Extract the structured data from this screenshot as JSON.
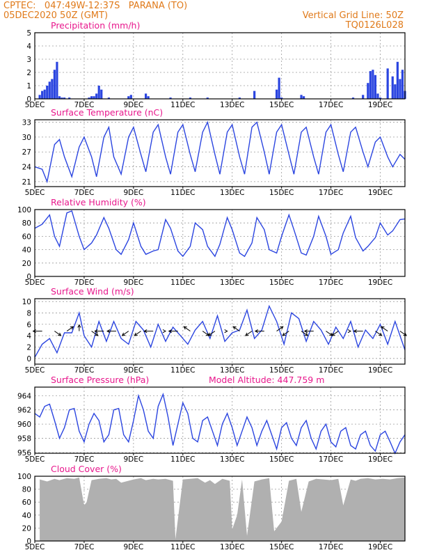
{
  "header": {
    "line1": "CPTEC:   047:49W-12:37S   PARANA (TO)",
    "line2": "05DEC2020 50Z (GMT)",
    "right1": "Vertical Grid Line: 50Z",
    "right2": "TQ0126L028"
  },
  "colors": {
    "title": "#e8178c",
    "header": "#e07a1a",
    "series": "#2b45e0",
    "bars": "#2b45e0",
    "cloud": "#b0b0b0",
    "wind_arrows": "#000000"
  },
  "x_axis": {
    "date_labels": [
      "5DEC",
      "7DEC",
      "9DEC",
      "11DEC",
      "13DEC",
      "15DEC",
      "17DEC",
      "19DEC"
    ],
    "day_range": [
      5,
      20
    ]
  },
  "chart_data": [
    {
      "id": "precip",
      "type": "bar",
      "title": "Precipitation (mm/h)",
      "ylim": [
        0,
        5
      ],
      "yticks": [
        "0",
        "1",
        "2",
        "3",
        "4",
        "5"
      ],
      "grid": true,
      "x": [
        5.2,
        5.3,
        5.4,
        5.5,
        5.6,
        5.7,
        5.8,
        5.9,
        6.0,
        6.1,
        6.2,
        6.4,
        7.2,
        7.3,
        7.4,
        7.5,
        7.6,
        7.7,
        8.0,
        8.8,
        8.9,
        9.5,
        9.6,
        10.5,
        11.3,
        12.0,
        13.3,
        13.9,
        14.8,
        14.9,
        15.0,
        15.8,
        15.9,
        17.9,
        18.3,
        18.5,
        18.6,
        18.7,
        18.8,
        18.9,
        19.0,
        19.3,
        19.5,
        19.6,
        19.7,
        19.8,
        19.9,
        20.0
      ],
      "values": [
        0.3,
        0.6,
        0.7,
        1.0,
        1.3,
        1.5,
        2.2,
        2.8,
        0.2,
        0.1,
        0.1,
        0.1,
        0.1,
        0.2,
        0.2,
        0.4,
        1.0,
        0.7,
        0.1,
        0.2,
        0.3,
        0.4,
        0.2,
        0.1,
        0.1,
        0.1,
        0.1,
        0.6,
        0.7,
        1.6,
        0.1,
        0.3,
        0.2,
        0.1,
        0.3,
        1.2,
        2.1,
        2.2,
        1.8,
        0.4,
        0.1,
        2.3,
        1.7,
        1.1,
        2.8,
        1.5,
        2.2,
        0.6
      ]
    },
    {
      "id": "temp",
      "type": "line",
      "title": "Surface Temperature (nC)",
      "ylim": [
        20,
        33.5
      ],
      "yticks": [
        "21",
        "24",
        "27",
        "30",
        "33"
      ],
      "grid": true,
      "x": [
        5.0,
        5.3,
        5.5,
        5.8,
        6.0,
        6.2,
        6.5,
        6.8,
        7.0,
        7.3,
        7.5,
        7.8,
        8.0,
        8.2,
        8.5,
        8.8,
        9.0,
        9.3,
        9.5,
        9.8,
        10.0,
        10.3,
        10.5,
        10.8,
        11.0,
        11.3,
        11.5,
        11.8,
        12.0,
        12.3,
        12.5,
        12.8,
        13.0,
        13.3,
        13.5,
        13.8,
        14.0,
        14.3,
        14.5,
        14.8,
        15.0,
        15.3,
        15.5,
        15.8,
        16.0,
        16.3,
        16.5,
        16.8,
        17.0,
        17.3,
        17.5,
        17.8,
        18.0,
        18.3,
        18.5,
        18.8,
        19.0,
        19.3,
        19.5,
        19.8,
        20.0
      ],
      "values": [
        24.0,
        23.5,
        21.0,
        28.5,
        29.5,
        26.0,
        22.0,
        28.0,
        30.0,
        26.0,
        22.0,
        30.0,
        32.0,
        26.0,
        22.5,
        30.0,
        32.0,
        26.5,
        23.0,
        31.0,
        32.5,
        26.0,
        22.5,
        31.0,
        32.5,
        26.5,
        23.0,
        31.0,
        33.0,
        26.5,
        22.5,
        31.0,
        32.5,
        26.0,
        22.5,
        32.0,
        33.0,
        27.0,
        22.5,
        31.0,
        32.5,
        26.5,
        22.5,
        31.0,
        32.0,
        26.0,
        22.5,
        31.0,
        32.5,
        26.5,
        23.0,
        31.0,
        32.0,
        27.0,
        24.0,
        29.0,
        30.0,
        26.0,
        24.0,
        26.5,
        25.5
      ]
    },
    {
      "id": "rh",
      "type": "line",
      "title": "Relative Humidity (%)",
      "ylim": [
        0,
        100
      ],
      "yticks": [
        "0",
        "20",
        "40",
        "60",
        "80",
        "100"
      ],
      "grid": true,
      "x": [
        5.0,
        5.3,
        5.6,
        5.8,
        6.0,
        6.3,
        6.5,
        6.8,
        7.0,
        7.3,
        7.5,
        7.8,
        8.0,
        8.3,
        8.5,
        8.8,
        9.0,
        9.3,
        9.5,
        9.8,
        10.0,
        10.3,
        10.5,
        10.8,
        11.0,
        11.3,
        11.5,
        11.8,
        12.0,
        12.3,
        12.5,
        12.8,
        13.0,
        13.3,
        13.5,
        13.8,
        14.0,
        14.3,
        14.5,
        14.8,
        15.0,
        15.3,
        15.5,
        15.8,
        16.0,
        16.3,
        16.5,
        16.8,
        17.0,
        17.3,
        17.5,
        17.8,
        18.0,
        18.3,
        18.5,
        18.8,
        19.0,
        19.3,
        19.5,
        19.8,
        20.0
      ],
      "values": [
        72,
        78,
        92,
        60,
        45,
        95,
        98,
        60,
        40,
        50,
        62,
        88,
        72,
        40,
        33,
        55,
        80,
        45,
        33,
        38,
        40,
        85,
        72,
        38,
        30,
        45,
        80,
        70,
        45,
        30,
        48,
        88,
        70,
        35,
        30,
        50,
        88,
        70,
        40,
        35,
        60,
        92,
        70,
        35,
        32,
        60,
        90,
        60,
        33,
        40,
        65,
        90,
        58,
        38,
        45,
        58,
        80,
        62,
        68,
        85,
        86
      ]
    },
    {
      "id": "wind",
      "type": "line",
      "title": "Surface Wind (m/s)",
      "ylim": [
        -1,
        10.5
      ],
      "yticks": [
        "0",
        "2",
        "4",
        "6",
        "8",
        "10"
      ],
      "grid": true,
      "x": [
        5.0,
        5.3,
        5.6,
        5.9,
        6.2,
        6.5,
        6.8,
        7.0,
        7.3,
        7.6,
        7.9,
        8.2,
        8.5,
        8.8,
        9.1,
        9.4,
        9.7,
        10.0,
        10.3,
        10.6,
        10.9,
        11.2,
        11.5,
        11.8,
        12.1,
        12.4,
        12.7,
        13.0,
        13.3,
        13.6,
        13.9,
        14.2,
        14.5,
        14.8,
        15.1,
        15.4,
        15.7,
        16.0,
        16.3,
        16.6,
        16.9,
        17.2,
        17.5,
        17.8,
        18.1,
        18.4,
        18.7,
        19.0,
        19.3,
        19.6,
        20.0
      ],
      "values": [
        0.2,
        2.5,
        3.5,
        1.0,
        4.5,
        4.5,
        8.0,
        4.0,
        2.0,
        6.5,
        3.0,
        6.5,
        3.5,
        2.5,
        6.5,
        5.0,
        2.0,
        6.0,
        3.0,
        5.5,
        4.0,
        2.5,
        5.0,
        6.5,
        3.5,
        7.5,
        3.0,
        4.5,
        5.0,
        8.5,
        3.5,
        5.0,
        9.2,
        6.5,
        2.5,
        8.0,
        7.0,
        3.0,
        6.5,
        5.0,
        2.5,
        5.5,
        3.5,
        6.5,
        2.0,
        5.0,
        3.5,
        6.0,
        2.5,
        6.5,
        1.5
      ],
      "arrows": {
        "x": [
          5.3,
          5.8,
          6.3,
          6.8,
          7.3,
          7.8,
          8.3,
          8.8,
          9.3,
          9.8,
          10.3,
          10.8,
          11.3,
          11.8,
          12.3,
          12.8,
          13.3,
          13.8,
          14.3,
          14.8,
          15.3,
          15.8,
          16.3,
          16.8,
          17.3,
          17.8,
          18.3,
          18.8,
          19.3,
          19.8
        ],
        "u": [
          -1,
          1,
          1,
          0,
          1,
          -1,
          -1,
          -1,
          -1,
          -1,
          0,
          -1,
          -1,
          1,
          -1,
          0,
          -1,
          -1,
          -1,
          1,
          -1,
          1,
          -1,
          1,
          -1,
          0,
          -1,
          1,
          -1,
          1
        ],
        "v": [
          0,
          -1,
          1,
          1,
          -1,
          0,
          0,
          -1,
          -1,
          0,
          0,
          0,
          1,
          -1,
          -1,
          0,
          1,
          -1,
          0,
          1,
          -1,
          -1,
          0,
          -1,
          -1,
          0,
          0,
          -1,
          1,
          -1
        ]
      }
    },
    {
      "id": "psfc",
      "type": "line",
      "title": "Surface Pressure (hPa)",
      "annotation": "Model Altitude: 447.759  m",
      "ylim": [
        955.9,
        965.2
      ],
      "yticks": [
        "956",
        "958",
        "960",
        "962",
        "964"
      ],
      "grid": true,
      "x": [
        5.0,
        5.2,
        5.4,
        5.6,
        5.8,
        6.0,
        6.2,
        6.4,
        6.6,
        6.8,
        7.0,
        7.2,
        7.4,
        7.6,
        7.8,
        8.0,
        8.2,
        8.4,
        8.6,
        8.8,
        9.0,
        9.2,
        9.4,
        9.6,
        9.8,
        10.0,
        10.2,
        10.4,
        10.6,
        10.8,
        11.0,
        11.2,
        11.4,
        11.6,
        11.8,
        12.0,
        12.2,
        12.4,
        12.6,
        12.8,
        13.0,
        13.2,
        13.4,
        13.6,
        13.8,
        14.0,
        14.2,
        14.4,
        14.6,
        14.8,
        15.0,
        15.2,
        15.4,
        15.6,
        15.8,
        16.0,
        16.2,
        16.4,
        16.6,
        16.8,
        17.0,
        17.2,
        17.4,
        17.6,
        17.8,
        18.0,
        18.2,
        18.4,
        18.6,
        18.8,
        19.0,
        19.2,
        19.4,
        19.6,
        19.8,
        20.0
      ],
      "values": [
        961.5,
        961.0,
        962.5,
        962.8,
        960.5,
        958.0,
        959.5,
        962.0,
        962.2,
        959.0,
        957.5,
        960.0,
        961.5,
        960.5,
        957.5,
        958.5,
        962.0,
        962.2,
        958.5,
        957.5,
        960.5,
        964.0,
        962.0,
        959.0,
        958.0,
        962.5,
        964.2,
        961.0,
        957.0,
        960.0,
        963.0,
        961.5,
        958.0,
        957.5,
        960.5,
        961.0,
        959.0,
        957.0,
        960.0,
        961.5,
        959.5,
        957.0,
        959.0,
        961.0,
        959.5,
        957.0,
        959.0,
        960.5,
        958.5,
        956.5,
        959.5,
        960.2,
        958.0,
        957.0,
        959.5,
        960.5,
        958.0,
        956.5,
        959.0,
        960.0,
        957.5,
        956.8,
        959.0,
        959.5,
        957.0,
        956.5,
        958.5,
        959.0,
        957.0,
        956.2,
        958.5,
        959.0,
        957.5,
        955.9,
        957.5,
        958.5
      ]
    },
    {
      "id": "cloud",
      "type": "area",
      "title": "Cloud Cover (%)",
      "ylim": [
        0,
        100
      ],
      "yticks": [
        "0",
        "20",
        "40",
        "60",
        "80",
        "100"
      ],
      "grid": true,
      "x": [
        5.2,
        5.5,
        5.8,
        6.0,
        6.3,
        6.6,
        6.8,
        7.0,
        7.1,
        7.3,
        7.6,
        7.9,
        8.1,
        8.3,
        8.5,
        8.8,
        9.0,
        9.3,
        9.5,
        9.8,
        10.0,
        10.3,
        10.6,
        10.7,
        11.0,
        11.3,
        11.6,
        11.9,
        12.1,
        12.3,
        12.6,
        12.9,
        13.0,
        13.2,
        13.4,
        13.6,
        13.9,
        14.2,
        14.5,
        14.7,
        15.0,
        15.3,
        15.6,
        15.8,
        16.1,
        16.4,
        16.7,
        17.0,
        17.3,
        17.5,
        17.8,
        18.0,
        18.2,
        18.5,
        18.8,
        19.1,
        19.4,
        19.7,
        20.0
      ],
      "values": [
        95,
        92,
        96,
        94,
        97,
        96,
        98,
        55,
        60,
        94,
        96,
        97,
        95,
        96,
        90,
        93,
        95,
        97,
        94,
        96,
        95,
        96,
        93,
        3,
        95,
        96,
        97,
        90,
        94,
        88,
        96,
        93,
        18,
        40,
        95,
        8,
        92,
        95,
        97,
        15,
        30,
        93,
        96,
        45,
        92,
        96,
        95,
        94,
        96,
        55,
        95,
        93,
        96,
        97,
        95,
        96,
        95,
        97,
        98
      ]
    }
  ]
}
